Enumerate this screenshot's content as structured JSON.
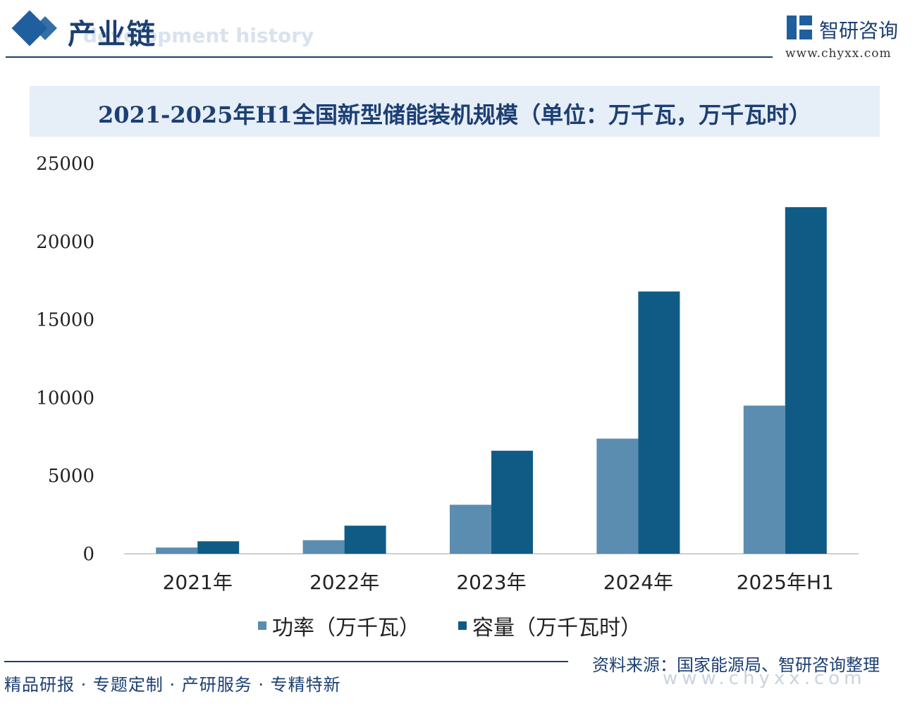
{
  "header": {
    "section_title": "产业链",
    "section_subtitle": "development history",
    "logo_name": "智研咨询",
    "logo_url": "www.chyxx.com"
  },
  "chart_data": {
    "type": "bar",
    "title": "2021-2025年H1全国新型储能装机规模（单位：万千瓦，万千瓦时）",
    "categories": [
      "2021年",
      "2022年",
      "2023年",
      "2024年",
      "2025年H1"
    ],
    "series": [
      {
        "name": "功率（万千瓦）",
        "values": [
          400,
          870,
          3140,
          7376,
          9491
        ],
        "color": "#5b8db0"
      },
      {
        "name": "容量（万千瓦时）",
        "values": [
          800,
          1800,
          6600,
          16800,
          22200
        ],
        "color": "#0f5b86"
      }
    ],
    "ylim": [
      0,
      25000
    ],
    "yticks": [
      0,
      5000,
      10000,
      15000,
      20000,
      25000
    ],
    "grid": false,
    "legend_position": "bottom"
  },
  "footer": {
    "source": "资料来源：国家能源局、智研咨询整理",
    "tagline": "精品研报 · 专题定制 · 产研服务 · 专精特新",
    "url": "www.chyxx.com"
  }
}
